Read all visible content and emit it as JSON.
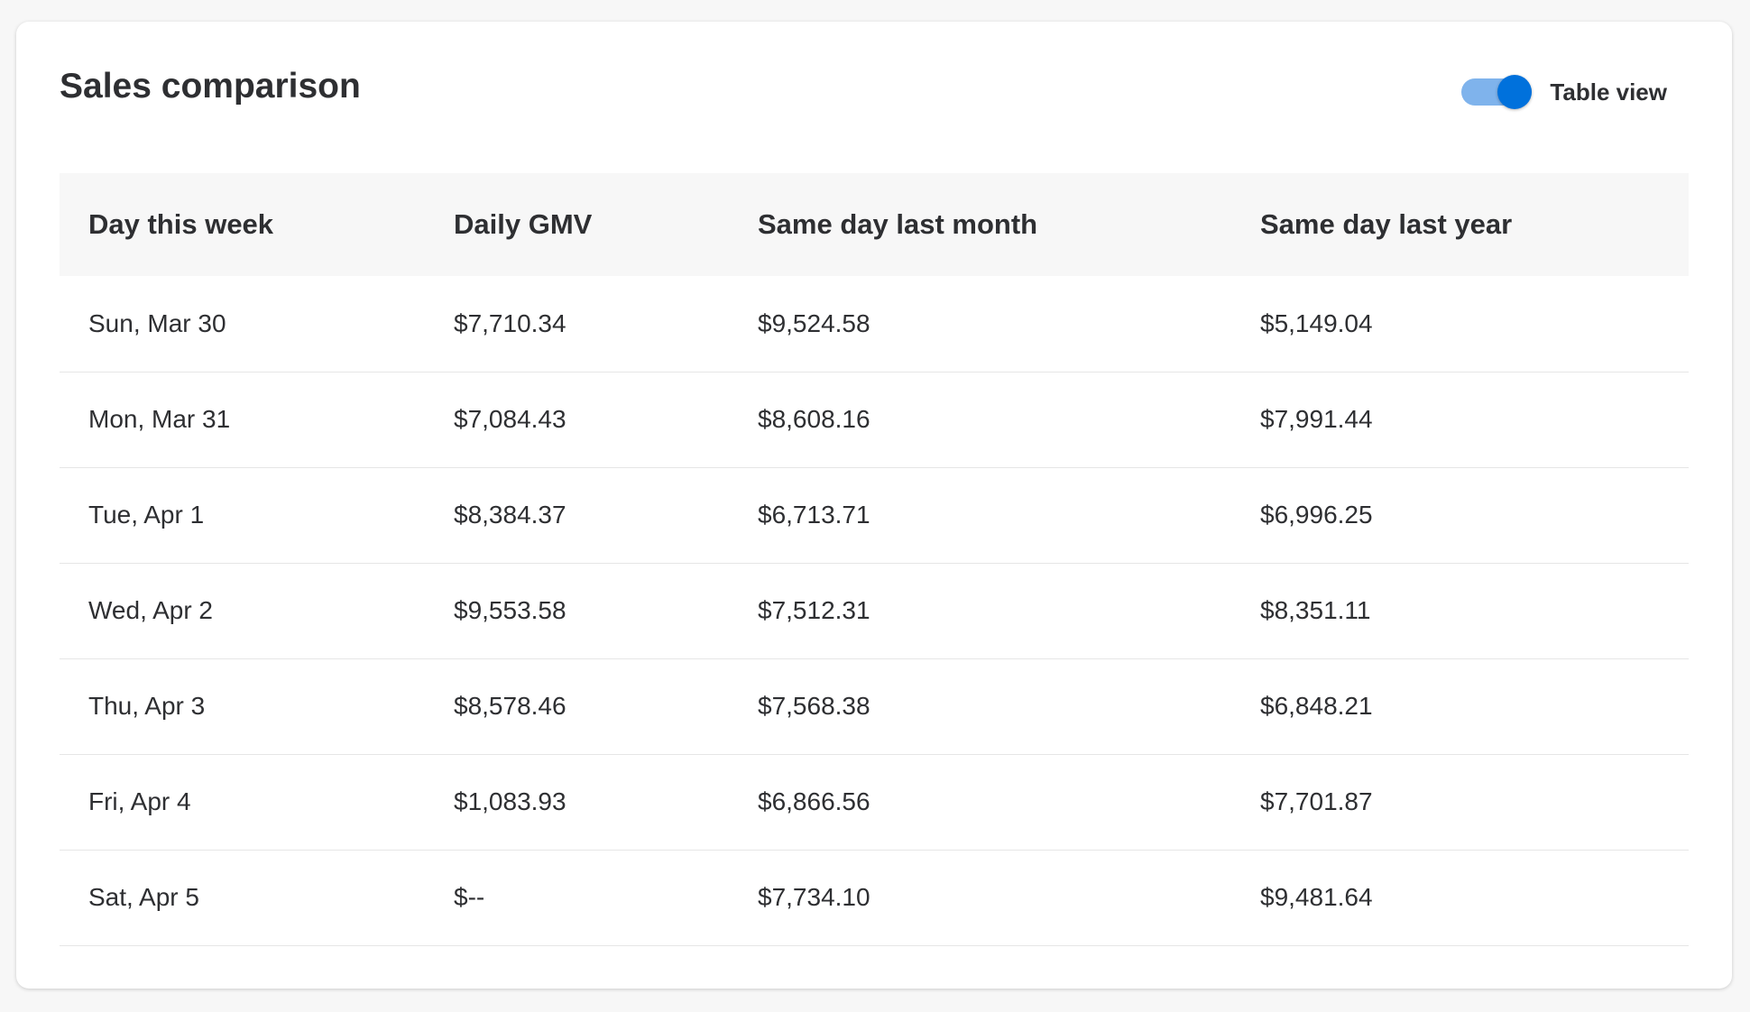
{
  "card": {
    "title": "Sales comparison"
  },
  "toggle": {
    "label": "Table view",
    "checked": true
  },
  "table": {
    "headers": [
      "Day this week",
      "Daily GMV",
      "Same day last month",
      "Same day last year"
    ],
    "rows": [
      [
        "Sun, Mar 30",
        "$7,710.34",
        "$9,524.58",
        "$5,149.04"
      ],
      [
        "Mon, Mar 31",
        "$7,084.43",
        "$8,608.16",
        "$7,991.44"
      ],
      [
        "Tue, Apr 1",
        "$8,384.37",
        "$6,713.71",
        "$6,996.25"
      ],
      [
        "Wed, Apr 2",
        "$9,553.58",
        "$7,512.31",
        "$8,351.11"
      ],
      [
        "Thu, Apr 3",
        "$8,578.46",
        "$7,568.38",
        "$6,848.21"
      ],
      [
        "Fri, Apr 4",
        "$1,083.93",
        "$6,866.56",
        "$7,701.87"
      ],
      [
        "Sat, Apr 5",
        "$--",
        "$7,734.10",
        "$9,481.64"
      ]
    ]
  },
  "colors": {
    "accent": "#0071dc",
    "toggle_track": "#7fb3ec",
    "text": "#2e2f32",
    "header_bg": "#f7f7f7",
    "divider": "#e6e6e6"
  }
}
